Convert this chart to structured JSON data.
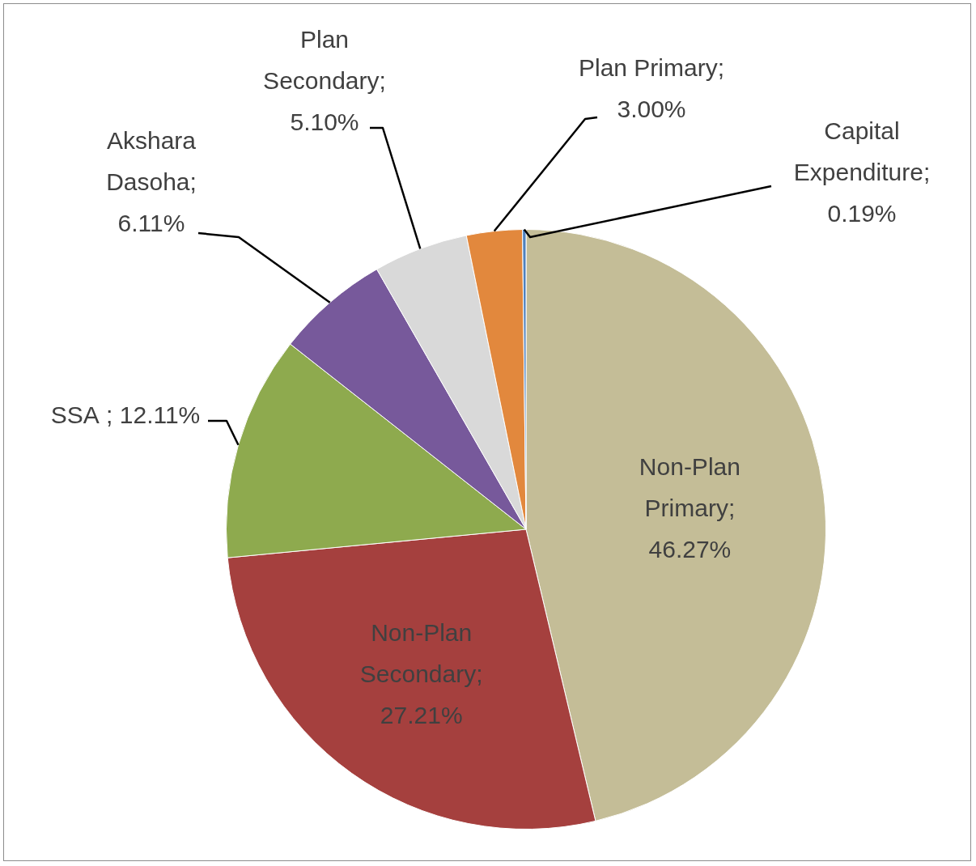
{
  "chart_data": {
    "type": "pie",
    "categories": [
      "Non-Plan Primary",
      "Non-Plan Secondary",
      "SSA ",
      "Akshara Dasoha",
      "Plan Secondary",
      "Plan Primary",
      "Capital Expenditure"
    ],
    "values": [
      46.27,
      27.21,
      12.11,
      6.11,
      5.1,
      3.0,
      0.19
    ],
    "value_labels": [
      "; 46.27%",
      "; 27.21%",
      "; 12.11%",
      "; 6.11%",
      "; 5.10%",
      "; 3.00%",
      "; 0.19%"
    ],
    "colors": [
      "#c4bd97",
      "#a5403e",
      "#8eaa4e",
      "#77599b",
      "#d9d9d9",
      "#e2883d",
      "#4f81bd"
    ],
    "legend": false
  }
}
